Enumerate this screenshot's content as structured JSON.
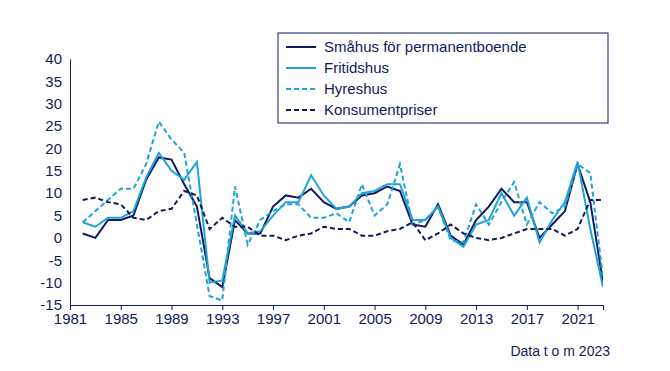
{
  "chart_data": {
    "type": "line",
    "x": [
      1982,
      1983,
      1984,
      1985,
      1986,
      1987,
      1988,
      1989,
      1990,
      1991,
      1992,
      1993,
      1994,
      1995,
      1996,
      1997,
      1998,
      1999,
      2000,
      2001,
      2002,
      2003,
      2004,
      2005,
      2006,
      2007,
      2008,
      2009,
      2010,
      2011,
      2012,
      2013,
      2014,
      2015,
      2016,
      2017,
      2018,
      2019,
      2020,
      2021,
      2022,
      2023
    ],
    "series": [
      {
        "name": "Småhus för permanentboende",
        "color": "#101a5e",
        "line_style": "solid",
        "values": [
          1,
          0,
          4,
          4,
          5,
          13,
          18,
          17.5,
          12,
          7,
          -9,
          -11,
          4,
          1,
          1,
          7,
          9.5,
          9,
          11,
          8,
          6.5,
          7,
          9.5,
          10,
          11.5,
          10.5,
          3,
          2.5,
          7.5,
          0.5,
          -1.5,
          4,
          7,
          11,
          8,
          8,
          0,
          3,
          6,
          16.5,
          8,
          -10
        ]
      },
      {
        "name": "Fritidshus",
        "color": "#1fa3d9",
        "line_style": "solid",
        "values": [
          3.5,
          2.5,
          4.5,
          4.5,
          6,
          13.5,
          19,
          15,
          13,
          17,
          -10,
          -9.5,
          5,
          1,
          1.5,
          5,
          8,
          8,
          14,
          9.5,
          6.5,
          7,
          10,
          10.5,
          12,
          12,
          4,
          4,
          7,
          0,
          -2,
          3,
          4,
          10,
          5,
          9,
          -1,
          4,
          8,
          17,
          2,
          -11
        ]
      },
      {
        "name": "Hyreshus",
        "color": "#1fa3d9",
        "line_style": "dashed",
        "values": [
          3.5,
          6,
          8.5,
          11,
          11,
          16.5,
          26,
          22,
          19,
          3,
          -13,
          -14,
          11.5,
          -1.5,
          4,
          6,
          7.5,
          7.5,
          4.5,
          4.5,
          5.5,
          3.5,
          12,
          5,
          7.5,
          16.5,
          3,
          4,
          7,
          -0.5,
          -1,
          7.5,
          3,
          8,
          12.5,
          3,
          8,
          5.5,
          7,
          16.5,
          14.5,
          -9
        ]
      },
      {
        "name": "Konsumentpriser",
        "color": "#101a5e",
        "line_style": "dashed",
        "values": [
          8.5,
          9,
          8,
          7.5,
          4.5,
          4,
          6,
          6.5,
          10.5,
          9.5,
          2,
          4.5,
          2.5,
          2.5,
          0.5,
          0.5,
          -0.5,
          0.5,
          1,
          2.5,
          2,
          2,
          0.5,
          0.5,
          1.5,
          2,
          3.5,
          -0.5,
          1,
          3,
          1,
          0,
          -0.5,
          0,
          1,
          2,
          2,
          2,
          0.5,
          2,
          8.5,
          8.5
        ]
      }
    ],
    "xlim": [
      1981,
      2023
    ],
    "xticks": [
      1981,
      1985,
      1989,
      1993,
      1997,
      2001,
      2005,
      2009,
      2013,
      2017,
      2021
    ],
    "ylim": [
      -15,
      40
    ],
    "yticks": [
      -15,
      -10,
      -5,
      0,
      5,
      10,
      15,
      20,
      25,
      30,
      35,
      40
    ],
    "grid": false,
    "legend": "upper right",
    "annotations": [
      "Data t o m 2023"
    ]
  }
}
